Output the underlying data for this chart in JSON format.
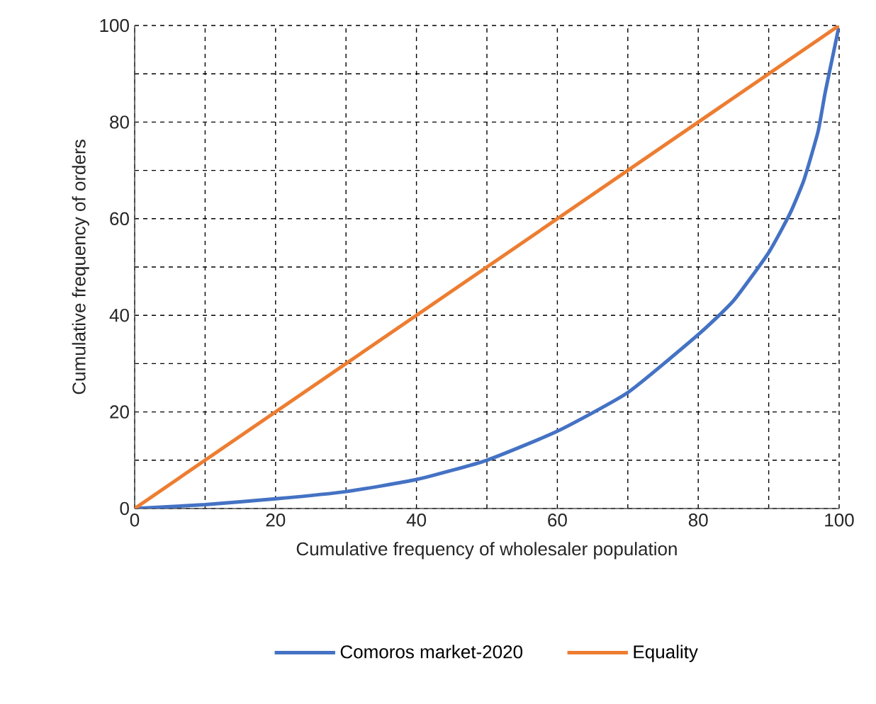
{
  "chart_data": {
    "type": "line",
    "xlabel": "Cumulative frequency of wholesaler population",
    "ylabel": "Cumulative frequency of orders",
    "xlim": [
      0,
      100
    ],
    "ylim": [
      0,
      100
    ],
    "xticks": [
      0,
      {
        "value": 10,
        "label": null
      },
      20,
      {
        "value": 30,
        "label": null
      },
      40,
      {
        "value": 50,
        "label": null
      },
      60,
      {
        "value": 70,
        "label": null
      },
      80,
      {
        "value": 90,
        "label": null
      },
      100
    ],
    "yticks": [
      0,
      {
        "value": 10,
        "label": null
      },
      20,
      {
        "value": 30,
        "label": null
      },
      40,
      {
        "value": 50,
        "label": null
      },
      60,
      {
        "value": 70,
        "label": null
      },
      80,
      {
        "value": 90,
        "label": null
      },
      100
    ],
    "grid": true,
    "legend": "bottom",
    "marker": "none",
    "line_style": "solid",
    "series": [
      {
        "name": "Comoros market-2020",
        "color": "#4472c4",
        "x": [
          0,
          10,
          20,
          30,
          40,
          50,
          60,
          70,
          80,
          85,
          90,
          93,
          95,
          97,
          98,
          99,
          100
        ],
        "values": [
          0,
          0.8,
          2,
          3.5,
          6,
          10,
          16,
          24,
          36,
          43,
          53,
          61,
          68,
          78,
          86,
          93,
          100
        ]
      },
      {
        "name": "Equality",
        "color": "#ed7d31",
        "x": [
          0,
          100
        ],
        "values": [
          0,
          100
        ]
      }
    ]
  }
}
